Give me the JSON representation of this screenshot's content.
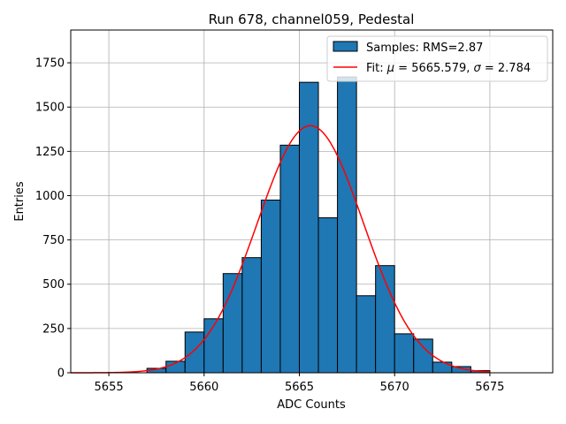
{
  "chart_data": {
    "type": "bar",
    "title": "Run 678, channel059, Pedestal",
    "xlabel": "ADC Counts",
    "ylabel": "Entries",
    "xlim": [
      5653,
      5678.3
    ],
    "ylim": [
      0,
      1935
    ],
    "xticks": [
      5655,
      5660,
      5665,
      5670,
      5675
    ],
    "yticks": [
      0,
      250,
      500,
      750,
      1000,
      1250,
      1500,
      1750
    ],
    "grid": true,
    "legend_position": "top-right",
    "bin_width": 1,
    "bins": [
      {
        "x": 5657,
        "count": 25
      },
      {
        "x": 5658,
        "count": 65
      },
      {
        "x": 5659,
        "count": 230
      },
      {
        "x": 5660,
        "count": 305
      },
      {
        "x": 5661,
        "count": 560
      },
      {
        "x": 5662,
        "count": 650
      },
      {
        "x": 5663,
        "count": 975
      },
      {
        "x": 5664,
        "count": 1285
      },
      {
        "x": 5665,
        "count": 1640
      },
      {
        "x": 5666,
        "count": 875
      },
      {
        "x": 5667,
        "count": 1670
      },
      {
        "x": 5668,
        "count": 435
      },
      {
        "x": 5669,
        "count": 605
      },
      {
        "x": 5670,
        "count": 220
      },
      {
        "x": 5671,
        "count": 190
      },
      {
        "x": 5672,
        "count": 60
      },
      {
        "x": 5673,
        "count": 35
      },
      {
        "x": 5674,
        "count": 12
      }
    ],
    "series": [
      {
        "name": "Samples: RMS=2.87",
        "kind": "histogram",
        "color": "#1f77b4",
        "edge_color": "#000000"
      },
      {
        "name_prefix": "Fit: ",
        "name_main": " = 5665.579, ",
        "name_end": " = 2.784",
        "mu_symbol": "μ",
        "sigma_symbol": "σ",
        "kind": "line",
        "color": "#ff0000",
        "mu": 5665.579,
        "sigma": 2.784,
        "amplitude": 1395,
        "x_range": [
          5653,
          5675
        ]
      }
    ]
  }
}
